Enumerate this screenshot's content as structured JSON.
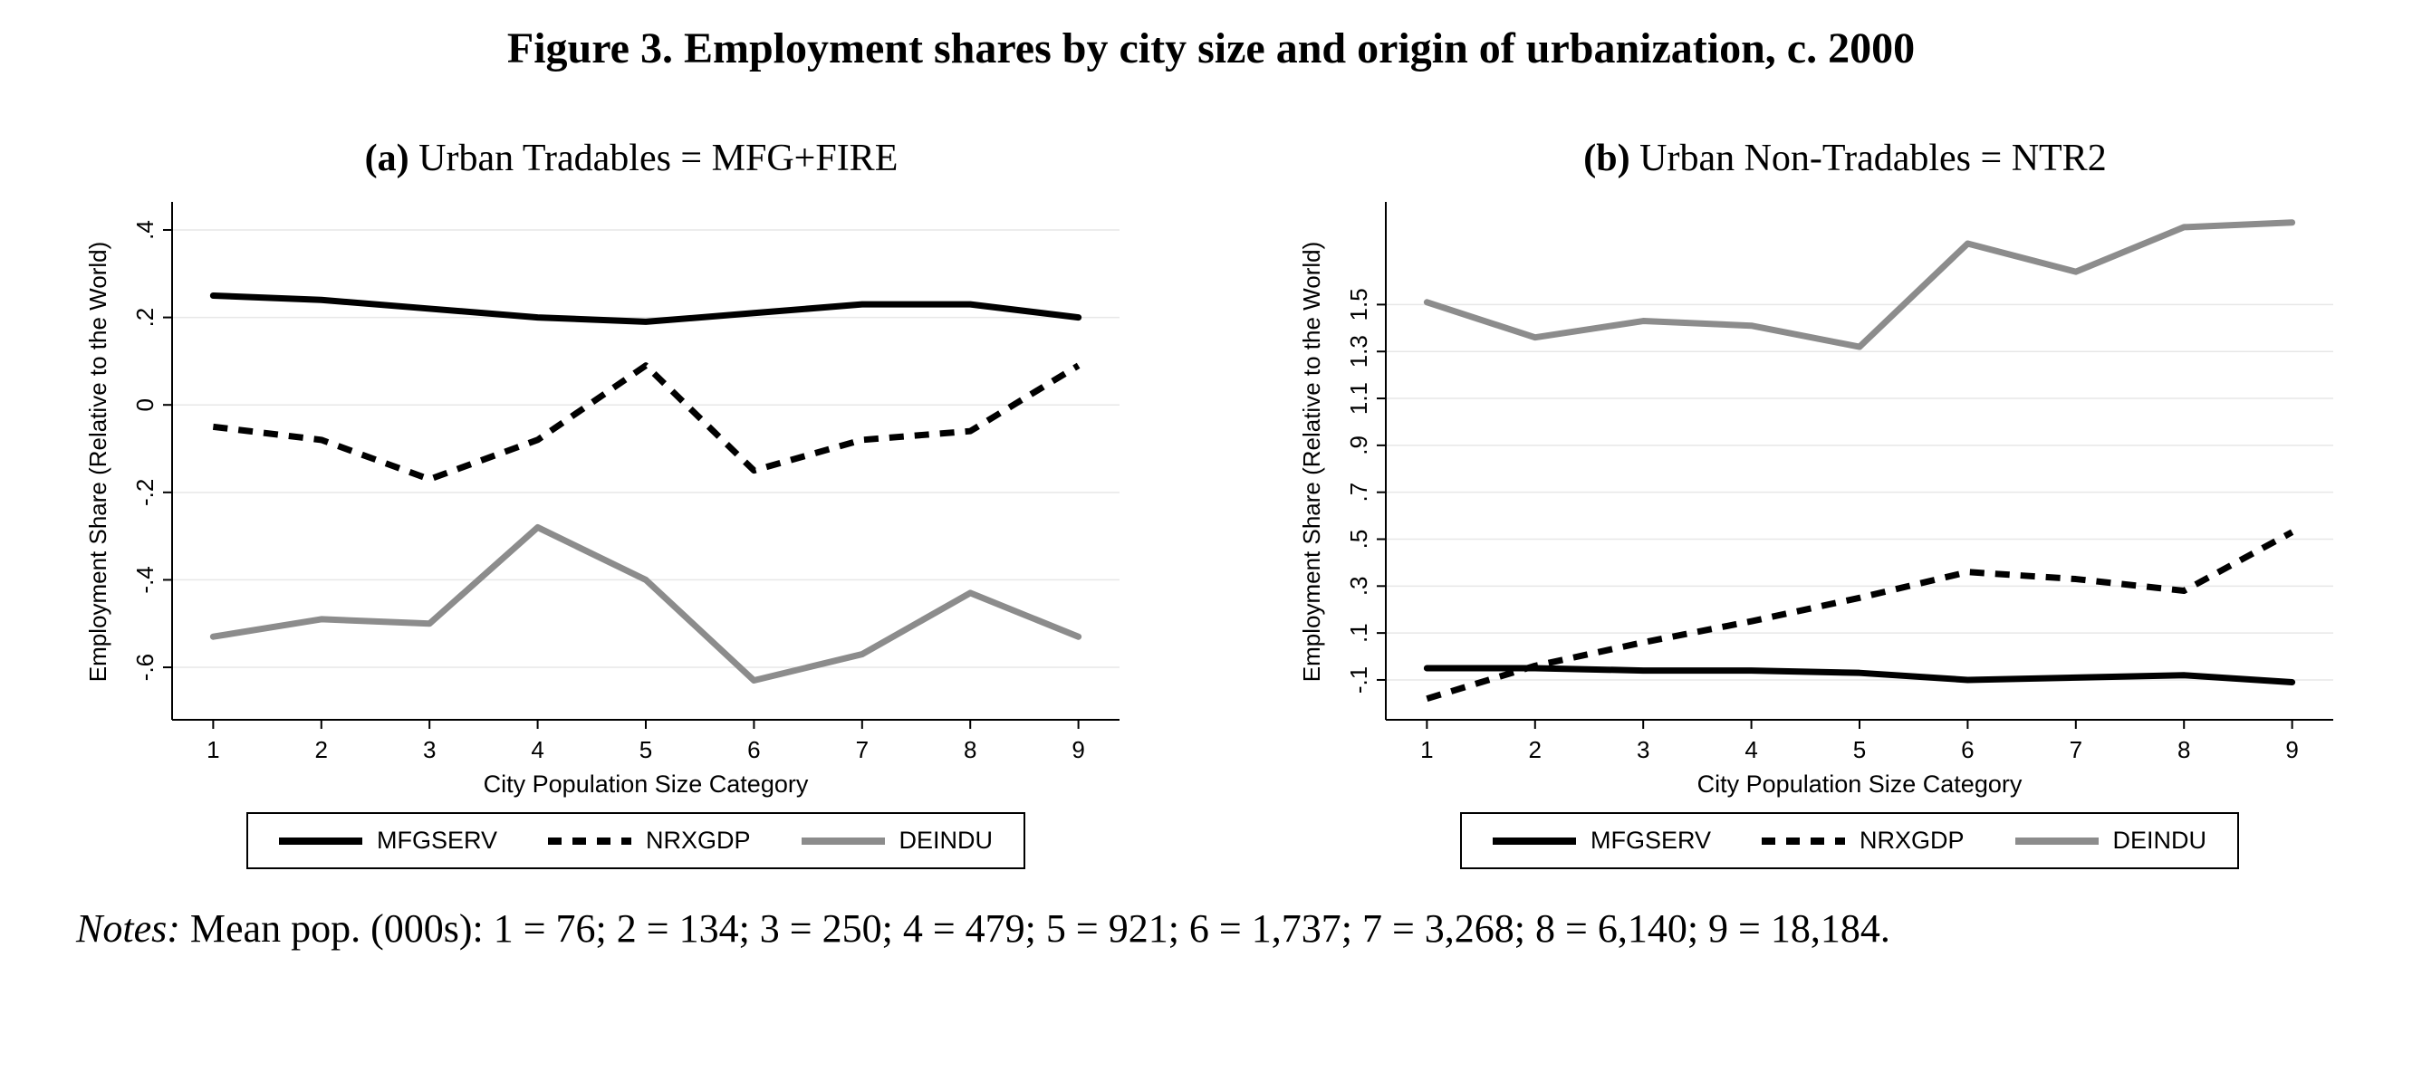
{
  "figure": {
    "title": "Figure 3.  Employment shares by city size and origin of urbanization, c. 2000",
    "notes": {
      "label": "Notes:",
      "text": " Mean pop. (000s): 1 = 76; 2 = 134; 3 = 250; 4 = 479; 5 = 921; 6 = 1,737; 7 = 3,268; 8 = 6,140; 9 = 18,184."
    }
  },
  "colors": {
    "line_black": "#000000",
    "line_gray": "#8c8c8c",
    "grid": "#e7e7e7",
    "axis": "#000000"
  },
  "chart_data": [
    {
      "type": "line",
      "panel_label": "(a)",
      "title": "Urban Tradables = MFG+FIRE",
      "xlabel": "City Population Size Category",
      "ylabel": "Employment Share (Relative to the World)",
      "grid": true,
      "legend_position": "bottom",
      "x": [
        1,
        2,
        3,
        4,
        5,
        6,
        7,
        8,
        9
      ],
      "xtick_labels": [
        "1",
        "2",
        "3",
        "4",
        "5",
        "6",
        "7",
        "8",
        "9"
      ],
      "xlim": [
        0.62,
        9.38
      ],
      "ylim": [
        -0.72,
        0.46
      ],
      "yticks": [
        0.4,
        0.2,
        0,
        -0.2,
        -0.4,
        -0.6
      ],
      "ytick_labels": [
        ".4",
        ".2",
        "0",
        "-.2",
        "-.4",
        "-.6"
      ],
      "series": [
        {
          "name": "MFGSERV",
          "style": "solid",
          "color": "black",
          "values": [
            0.25,
            0.24,
            0.22,
            0.2,
            0.19,
            0.21,
            0.23,
            0.23,
            0.2
          ]
        },
        {
          "name": "NRXGDP",
          "style": "dashed",
          "color": "black",
          "values": [
            -0.05,
            -0.08,
            -0.17,
            -0.08,
            0.09,
            -0.15,
            -0.08,
            -0.06,
            0.09
          ]
        },
        {
          "name": "DEINDU",
          "style": "solid",
          "color": "gray",
          "values": [
            -0.53,
            -0.49,
            -0.5,
            -0.28,
            -0.4,
            -0.63,
            -0.57,
            -0.43,
            -0.53
          ]
        }
      ]
    },
    {
      "type": "line",
      "panel_label": "(b)",
      "title": "Urban Non-Tradables = NTR2",
      "xlabel": "City Population Size Category",
      "ylabel": "Employment Share (Relative to the World)",
      "grid": true,
      "legend_position": "bottom",
      "x": [
        1,
        2,
        3,
        4,
        5,
        6,
        7,
        8,
        9
      ],
      "xtick_labels": [
        "1",
        "2",
        "3",
        "4",
        "5",
        "6",
        "7",
        "8",
        "9"
      ],
      "xlim": [
        0.62,
        9.38
      ],
      "ylim": [
        -0.27,
        1.93
      ],
      "yticks": [
        1.5,
        1.3,
        1.1,
        0.9,
        0.7,
        0.5,
        0.3,
        0.1,
        -0.1
      ],
      "ytick_labels": [
        "1.5",
        "1.3",
        "1.1",
        ".9",
        ".7",
        ".5",
        ".3",
        ".1",
        "-.1"
      ],
      "series": [
        {
          "name": "MFGSERV",
          "style": "solid",
          "color": "black",
          "values": [
            -0.05,
            -0.05,
            -0.06,
            -0.06,
            -0.07,
            -0.1,
            -0.09,
            -0.08,
            -0.11
          ]
        },
        {
          "name": "NRXGDP",
          "style": "dashed",
          "color": "black",
          "values": [
            -0.18,
            -0.04,
            0.06,
            0.15,
            0.25,
            0.36,
            0.33,
            0.28,
            0.53
          ]
        },
        {
          "name": "DEINDU",
          "style": "solid",
          "color": "gray",
          "values": [
            1.51,
            1.36,
            1.43,
            1.41,
            1.32,
            1.76,
            1.64,
            1.83,
            1.85
          ]
        }
      ]
    }
  ]
}
